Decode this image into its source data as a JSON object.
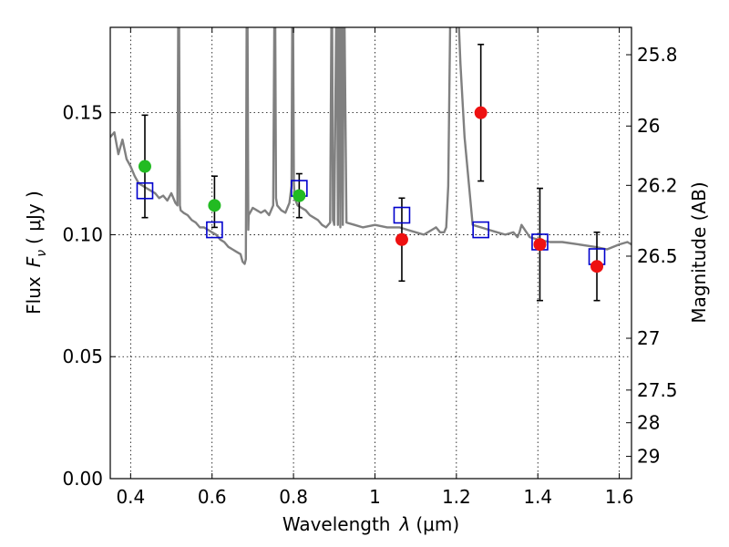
{
  "chart_data": {
    "type": "scatter",
    "xlabel_main": "Wavelength",
    "xlabel_symbol": "λ",
    "xlabel_unit": "(μm)",
    "ylabel_main": "Flux",
    "ylabel_symbol": "F",
    "ylabel_subscript": "ν",
    "ylabel_unit": "( μJy )",
    "y2label": "Magnitude (AB)",
    "xlim": [
      0.35,
      1.63
    ],
    "ylim": [
      0.0,
      0.185
    ],
    "x_ticks": [
      0.4,
      0.6,
      0.8,
      1.0,
      1.2,
      1.4,
      1.6
    ],
    "x_tick_labels": [
      "0.4",
      "0.6",
      "0.8",
      "1",
      "1.2",
      "1.4",
      "1.6"
    ],
    "y_ticks": [
      0.0,
      0.05,
      0.1,
      0.15
    ],
    "y_tick_labels": [
      "0.00",
      "0.05",
      "0.10",
      "0.15"
    ],
    "y2_ticks": [
      {
        "value": 25.8,
        "label": "25.8"
      },
      {
        "value": 26.0,
        "label": "26"
      },
      {
        "value": 26.2,
        "label": "26.2"
      },
      {
        "value": 26.5,
        "label": "26.5"
      },
      {
        "value": 27.0,
        "label": "27"
      },
      {
        "value": 27.5,
        "label": "27.5"
      },
      {
        "value": 28.0,
        "label": "28"
      },
      {
        "value": 29.0,
        "label": "29"
      }
    ],
    "grid": true,
    "colors": {
      "template": "#808080",
      "model": "#0000cc",
      "detection_green": "#22bb22",
      "detection_red": "#ee1111",
      "errorbar": "#000000"
    },
    "series": [
      {
        "name": "model photometry",
        "marker": "open-square",
        "x": [
          0.435,
          0.606,
          0.814,
          1.066,
          1.26,
          1.405,
          1.545
        ],
        "y": [
          0.118,
          0.102,
          0.119,
          0.108,
          0.102,
          0.097,
          0.091
        ]
      },
      {
        "name": "observed (green)",
        "marker": "filled-circle",
        "x": [
          0.435,
          0.606,
          0.814
        ],
        "y": [
          0.128,
          0.112,
          0.116
        ],
        "y_err_low": [
          0.107,
          0.103,
          0.107
        ],
        "y_err_high": [
          0.149,
          0.124,
          0.125
        ]
      },
      {
        "name": "observed (red)",
        "marker": "filled-circle",
        "x": [
          1.066,
          1.26,
          1.405,
          1.545
        ],
        "y": [
          0.098,
          0.15,
          0.096,
          0.087
        ],
        "y_err_low": [
          0.081,
          0.122,
          0.073,
          0.073
        ],
        "y_err_high": [
          0.115,
          0.178,
          0.119,
          0.101
        ]
      }
    ],
    "template_spectrum": {
      "name": "template SED",
      "x": [
        0.35,
        0.36,
        0.37,
        0.38,
        0.39,
        0.4,
        0.41,
        0.42,
        0.43,
        0.44,
        0.45,
        0.46,
        0.47,
        0.48,
        0.49,
        0.5,
        0.51,
        0.515,
        0.517,
        0.519,
        0.521,
        0.523,
        0.53,
        0.54,
        0.55,
        0.56,
        0.57,
        0.58,
        0.59,
        0.6,
        0.61,
        0.62,
        0.63,
        0.64,
        0.65,
        0.66,
        0.67,
        0.675,
        0.68,
        0.683,
        0.685,
        0.687,
        0.689,
        0.69,
        0.7,
        0.71,
        0.72,
        0.73,
        0.74,
        0.75,
        0.753,
        0.755,
        0.757,
        0.76,
        0.77,
        0.78,
        0.79,
        0.795,
        0.797,
        0.799,
        0.801,
        0.803,
        0.81,
        0.82,
        0.83,
        0.84,
        0.85,
        0.86,
        0.87,
        0.88,
        0.89,
        0.893,
        0.895,
        0.897,
        0.899,
        0.9,
        0.905,
        0.907,
        0.909,
        0.911,
        0.913,
        0.915,
        0.917,
        0.919,
        0.921,
        0.923,
        0.925,
        0.93,
        0.95,
        0.97,
        1.0,
        1.03,
        1.06,
        1.08,
        1.1,
        1.12,
        1.14,
        1.15,
        1.16,
        1.17,
        1.175,
        1.18,
        1.185,
        1.19,
        1.195,
        1.2,
        1.205,
        1.21,
        1.22,
        1.24,
        1.26,
        1.28,
        1.3,
        1.32,
        1.34,
        1.35,
        1.355,
        1.36,
        1.38,
        1.4,
        1.43,
        1.46,
        1.5,
        1.54,
        1.57,
        1.6,
        1.62,
        1.63
      ],
      "y": [
        0.14,
        0.142,
        0.133,
        0.139,
        0.131,
        0.128,
        0.124,
        0.121,
        0.12,
        0.119,
        0.118,
        0.117,
        0.115,
        0.116,
        0.114,
        0.117,
        0.113,
        0.112,
        0.19,
        0.19,
        0.112,
        0.11,
        0.109,
        0.108,
        0.106,
        0.105,
        0.103,
        0.103,
        0.102,
        0.101,
        0.1,
        0.098,
        0.097,
        0.095,
        0.094,
        0.093,
        0.092,
        0.089,
        0.088,
        0.09,
        0.19,
        0.19,
        0.102,
        0.108,
        0.111,
        0.11,
        0.109,
        0.11,
        0.108,
        0.112,
        0.19,
        0.19,
        0.115,
        0.112,
        0.11,
        0.109,
        0.113,
        0.12,
        0.19,
        0.19,
        0.121,
        0.115,
        0.112,
        0.111,
        0.11,
        0.108,
        0.107,
        0.106,
        0.104,
        0.103,
        0.105,
        0.19,
        0.19,
        0.106,
        0.105,
        0.104,
        0.19,
        0.19,
        0.104,
        0.19,
        0.19,
        0.103,
        0.19,
        0.19,
        0.104,
        0.19,
        0.19,
        0.105,
        0.104,
        0.103,
        0.104,
        0.103,
        0.103,
        0.102,
        0.101,
        0.1,
        0.102,
        0.103,
        0.101,
        0.101,
        0.103,
        0.12,
        0.19,
        0.19,
        0.19,
        0.19,
        0.19,
        0.17,
        0.14,
        0.104,
        0.103,
        0.102,
        0.101,
        0.1,
        0.101,
        0.099,
        0.101,
        0.104,
        0.099,
        0.098,
        0.097,
        0.097,
        0.096,
        0.095,
        0.094,
        0.096,
        0.097,
        0.096
      ]
    }
  }
}
